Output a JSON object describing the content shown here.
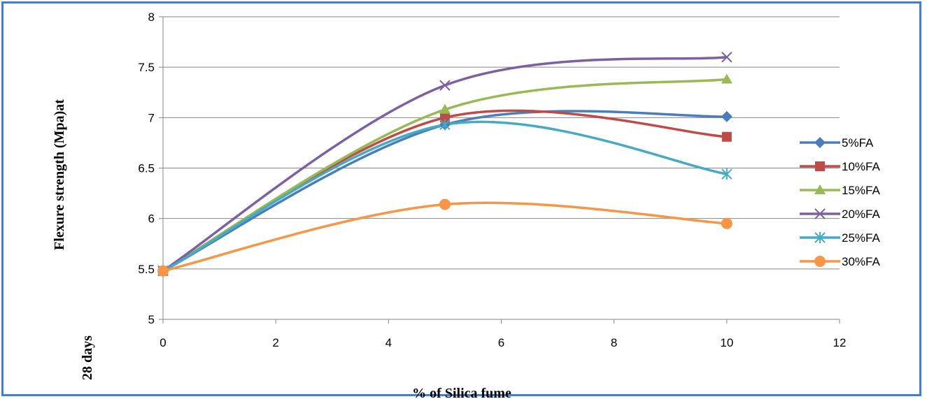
{
  "chart_data": {
    "type": "line",
    "title": "",
    "xlabel": "% of Silica fume",
    "ylabel": "Flexure strength (Mpa)at",
    "ylabel_extra": "28 days",
    "xlim": [
      0,
      12
    ],
    "ylim": [
      5,
      8
    ],
    "x_ticks": [
      "0",
      "2",
      "4",
      "6",
      "8",
      "10",
      "12"
    ],
    "y_ticks": [
      "5",
      "5.5",
      "6",
      "6.5",
      "7",
      "7.5",
      "8"
    ],
    "grid": "horizontal",
    "legend_position": "right",
    "smooth": true,
    "x": [
      0,
      5,
      10
    ],
    "series": [
      {
        "name": "5%FA",
        "values": [
          5.48,
          6.93,
          7.01
        ],
        "color": "#4a7ebb",
        "marker": "diamond"
      },
      {
        "name": "10%FA",
        "values": [
          5.48,
          7.0,
          6.81
        ],
        "color": "#be4b48",
        "marker": "square"
      },
      {
        "name": "15%FA",
        "values": [
          5.48,
          7.08,
          7.38
        ],
        "color": "#98b954",
        "marker": "triangle"
      },
      {
        "name": "20%FA",
        "values": [
          5.48,
          7.32,
          7.6
        ],
        "color": "#7d60a0",
        "marker": "x"
      },
      {
        "name": "25%FA",
        "values": [
          5.48,
          6.93,
          6.44
        ],
        "color": "#46aac5",
        "marker": "asterisk"
      },
      {
        "name": "30%FA",
        "values": [
          5.48,
          6.14,
          5.95
        ],
        "color": "#f79646",
        "marker": "circle"
      }
    ]
  }
}
